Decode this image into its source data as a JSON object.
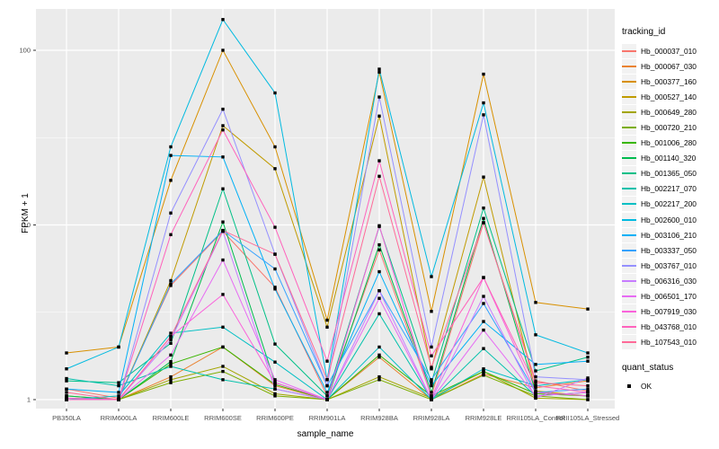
{
  "chart_data": {
    "type": "line",
    "xlabel": "sample_name",
    "ylabel": "FPKM + 1",
    "y_scale": "log10",
    "y_ticks": [
      1,
      10,
      100
    ],
    "y_minor_gridlines": [
      3.162,
      31.62
    ],
    "ylim": [
      1,
      160
    ],
    "grid": "on",
    "legend_position": "right",
    "panel_bg": "#EBEBEB",
    "gridline_color": "#FFFFFF",
    "marker": {
      "shape": "square",
      "color": "#000000",
      "size": 3.4
    },
    "categories": [
      "PB350LA",
      "RRIM600LA",
      "RRIM600LE",
      "RRIM600SE",
      "RRIM600PE",
      "RRIM901LA",
      "RRIM928BA",
      "RRIM928LA",
      "RRIM928LE",
      "RRII105LA_Control",
      "RRII105LA_Stressed"
    ],
    "series": [
      {
        "name": "Hb_000037_010",
        "color": "#F8766D",
        "values": [
          1.15,
          1.02,
          4.5,
          9.2,
          4.4,
          1.05,
          7.2,
          1.05,
          10.3,
          1.28,
          1.12
        ]
      },
      {
        "name": "Hb_000067_030",
        "color": "#EA8331",
        "values": [
          1.0,
          1.0,
          1.35,
          2.0,
          1.2,
          1.0,
          1.75,
          1.0,
          1.4,
          1.17,
          1.28
        ]
      },
      {
        "name": "Hb_000377_160",
        "color": "#D89000",
        "values": [
          1.85,
          2.0,
          18,
          100,
          28,
          2.85,
          75,
          3.2,
          73,
          3.6,
          3.3
        ]
      },
      {
        "name": "Hb_000527_140",
        "color": "#C09B00",
        "values": [
          1.05,
          1.0,
          4.8,
          37,
          21,
          2.6,
          42,
          1.5,
          18.8,
          1.12,
          1.05
        ]
      },
      {
        "name": "Hb_000649_280",
        "color": "#A3A500",
        "values": [
          1.0,
          1.0,
          1.3,
          1.55,
          1.08,
          1.0,
          1.35,
          1.02,
          1.45,
          1.02,
          1.0
        ]
      },
      {
        "name": "Hb_000720_210",
        "color": "#7CAE00",
        "values": [
          1.0,
          1.0,
          1.25,
          1.45,
          1.05,
          1.0,
          1.3,
          1.0,
          1.38,
          1.05,
          1.0
        ]
      },
      {
        "name": "Hb_001006_280",
        "color": "#39B600",
        "values": [
          1.02,
          1.0,
          1.6,
          2.0,
          1.22,
          1.0,
          1.8,
          1.05,
          1.45,
          1.08,
          1.05
        ]
      },
      {
        "name": "Hb_001140_320",
        "color": "#00BB4E",
        "values": [
          1.05,
          1.0,
          1.65,
          10.4,
          1.25,
          1.0,
          7.7,
          1.1,
          10.9,
          1.1,
          1.05
        ]
      },
      {
        "name": "Hb_001365_050",
        "color": "#00C087",
        "values": [
          1.28,
          1.25,
          2.1,
          16.1,
          2.08,
          1.05,
          9.8,
          1.25,
          12.5,
          1.46,
          1.75
        ]
      },
      {
        "name": "Hb_002217_070",
        "color": "#00C1AB",
        "values": [
          1.32,
          1.2,
          1.55,
          1.3,
          1.15,
          1.0,
          3.1,
          1.0,
          1.96,
          1.05,
          1.1
        ]
      },
      {
        "name": "Hb_002217_200",
        "color": "#00BFC4",
        "values": [
          1.0,
          1.05,
          2.4,
          2.6,
          1.64,
          1.0,
          2.0,
          1.0,
          1.5,
          1.2,
          1.3
        ]
      },
      {
        "name": "Hb_002600_010",
        "color": "#00BAE0",
        "values": [
          1.5,
          2.0,
          28,
          150,
          57,
          1.3,
          78,
          5.06,
          50,
          2.35,
          1.85
        ]
      },
      {
        "name": "Hb_003106_210",
        "color": "#00B0F6",
        "values": [
          1.15,
          1.1,
          25,
          24.5,
          4.3,
          1.1,
          5.4,
          1.2,
          2.8,
          1.59,
          1.66
        ]
      },
      {
        "name": "Hb_003337_050",
        "color": "#35A2FF",
        "values": [
          1.0,
          1.0,
          4.6,
          9.3,
          5.6,
          1.2,
          4.2,
          1.3,
          3.55,
          1.1,
          1.15
        ]
      },
      {
        "name": "Hb_003767_010",
        "color": "#9590FF",
        "values": [
          1.0,
          1.0,
          11.7,
          46,
          6.8,
          1.2,
          54,
          2.0,
          42.7,
          1.35,
          1.3
        ]
      },
      {
        "name": "Hb_006316_030",
        "color": "#C77CFF",
        "values": [
          1.0,
          1.0,
          2.2,
          9.2,
          1.15,
          1.0,
          4.2,
          1.0,
          3.9,
          1.02,
          1.33
        ]
      },
      {
        "name": "Hb_006501_170",
        "color": "#E76BF3",
        "values": [
          1.0,
          1.0,
          1.8,
          6.3,
          1.3,
          1.0,
          3.8,
          1.0,
          2.5,
          1.05,
          1.1
        ]
      },
      {
        "name": "Hb_007919_030",
        "color": "#FA62DB",
        "values": [
          1.02,
          1.0,
          2.3,
          4.0,
          1.25,
          1.0,
          9.9,
          1.02,
          5.0,
          1.1,
          1.05
        ]
      },
      {
        "name": "Hb_043768_010",
        "color": "#FF62BC",
        "values": [
          1.0,
          1.0,
          8.8,
          35,
          9.7,
          1.66,
          23.3,
          1.78,
          5.0,
          1.2,
          1.1
        ]
      },
      {
        "name": "Hb_107543_010",
        "color": "#FF6A98",
        "values": [
          1.1,
          1.0,
          2.29,
          9.3,
          6.8,
          1.3,
          19,
          1.53,
          10.3,
          1.25,
          1.2
        ]
      }
    ],
    "legend": {
      "tracking_title": "tracking_id",
      "quant_title": "quant_status",
      "quant_items": [
        {
          "label": "OK"
        }
      ]
    }
  },
  "axis_text_color": "#4D4D4D",
  "tick_color": "#333333"
}
